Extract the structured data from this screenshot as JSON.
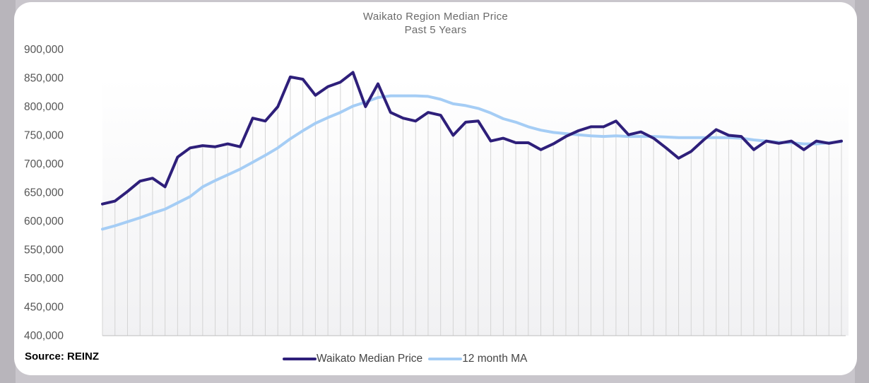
{
  "chart_data": {
    "type": "line",
    "title": "Waikato Region Median Price",
    "subtitle": "Past 5 Years",
    "xlabel": "",
    "ylabel": "",
    "ylim": [
      400000,
      900000
    ],
    "y_ticks": [
      "900,000",
      "850,000",
      "800,000",
      "750,000",
      "700,000",
      "650,000",
      "600,000",
      "550,000",
      "500,000",
      "450,000",
      "400,000"
    ],
    "grid": "vertical",
    "x_count": 60,
    "series": [
      {
        "name": "Waikato Median Price",
        "color": "#2e1f7a",
        "values": [
          630000,
          635000,
          652000,
          670000,
          675000,
          660000,
          712000,
          728000,
          732000,
          730000,
          735000,
          730000,
          780000,
          775000,
          800000,
          852000,
          848000,
          820000,
          835000,
          843000,
          860000,
          800000,
          840000,
          790000,
          780000,
          775000,
          790000,
          785000,
          750000,
          773000,
          775000,
          740000,
          745000,
          737000,
          737000,
          725000,
          735000,
          748000,
          758000,
          765000,
          765000,
          775000,
          751000,
          756000,
          745000,
          728000,
          710000,
          722000,
          742000,
          760000,
          750000,
          748000,
          725000,
          740000,
          736000,
          740000,
          725000,
          740000,
          736000,
          740000
        ]
      },
      {
        "name": "12 month MA",
        "color": "#a5cdf5",
        "values": [
          586000,
          592000,
          599000,
          606000,
          614000,
          621000,
          632000,
          643000,
          660000,
          671000,
          681000,
          691000,
          703000,
          715000,
          728000,
          744000,
          758000,
          771000,
          781000,
          790000,
          801000,
          808000,
          816000,
          819000,
          819000,
          819000,
          818000,
          813000,
          805000,
          802000,
          797000,
          789000,
          779000,
          773000,
          765000,
          759000,
          755000,
          753000,
          751000,
          749000,
          748000,
          749000,
          748000,
          748000,
          748000,
          747000,
          746000,
          746000,
          746000,
          746000,
          746000,
          745000,
          742000,
          740000,
          738000,
          737000,
          735000,
          735000,
          737000,
          739000
        ]
      }
    ],
    "legend_position": "bottom"
  },
  "source_text": "Source: REINZ"
}
